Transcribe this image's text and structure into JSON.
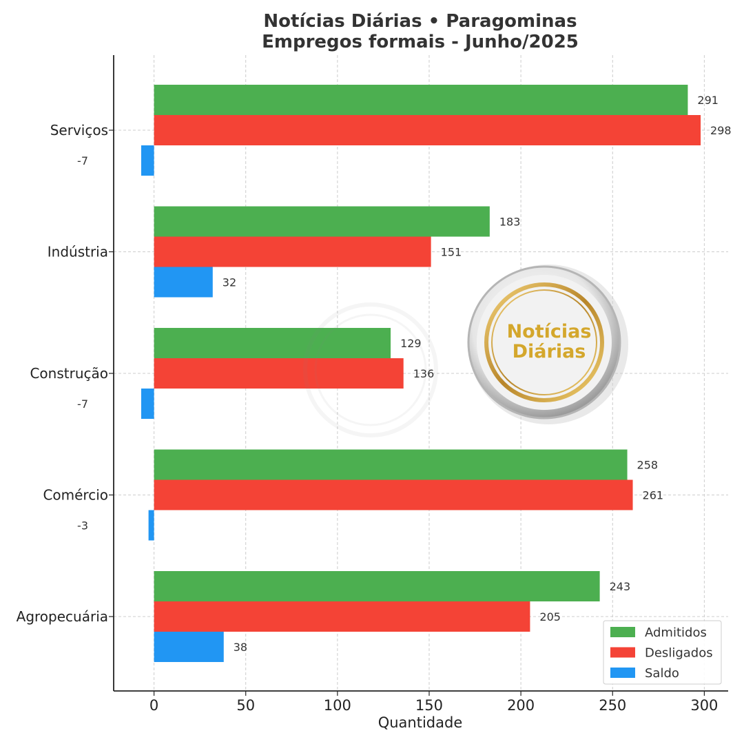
{
  "chart_data": {
    "type": "bar",
    "orientation": "horizontal",
    "title_lines": [
      "Notícias Diárias • Paragominas",
      "Empregos formais - Junho/2025"
    ],
    "xlabel": "Quantidade",
    "ylabel": "",
    "categories": [
      "Serviços",
      "Indústria",
      "Construção",
      "Comércio",
      "Agropecuária"
    ],
    "series": [
      {
        "name": "Admitidos",
        "color": "#4caf50",
        "values": [
          291,
          183,
          129,
          258,
          243
        ]
      },
      {
        "name": "Desligados",
        "color": "#f44336",
        "values": [
          298,
          151,
          136,
          261,
          205
        ]
      },
      {
        "name": "Saldo",
        "color": "#2196f3",
        "values": [
          -7,
          32,
          -7,
          -3,
          38
        ]
      }
    ],
    "xlim": [
      -22,
      313
    ],
    "xticks": [
      0,
      50,
      100,
      150,
      200,
      250,
      300
    ],
    "grid": true,
    "legend_position": "bottom-right"
  },
  "watermark": {
    "line1": "Notícias",
    "line2": "Diárias",
    "gold": "#d4a72c"
  }
}
